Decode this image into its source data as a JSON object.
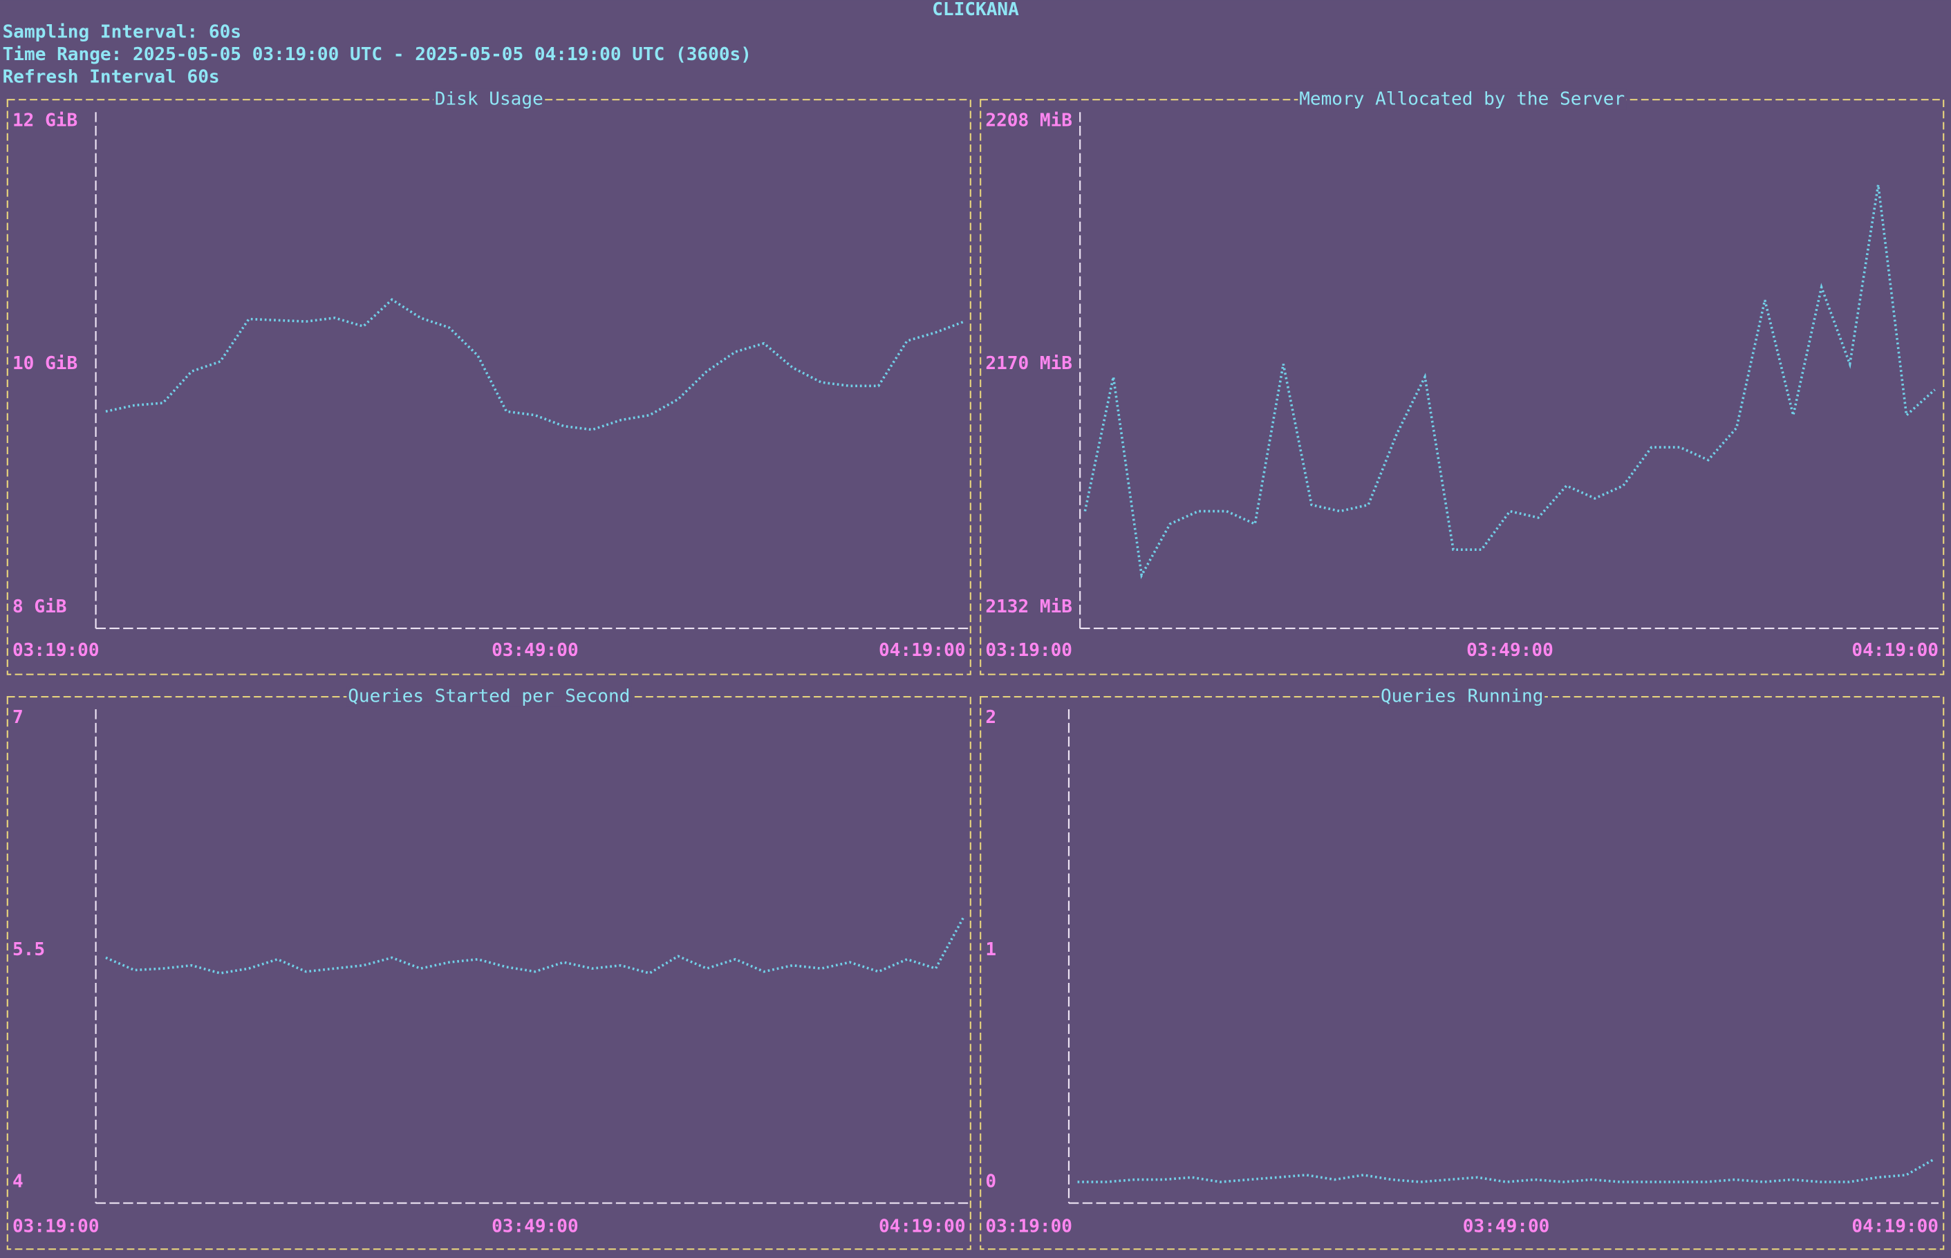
{
  "header": {
    "app": "CLICKANA",
    "lines": [
      "Sampling Interval: 60s",
      "Time Range: 2025-05-05 03:19:00 UTC - 2025-05-05 04:19:00 UTC (3600s)",
      "Refresh Interval 60s"
    ]
  },
  "chart_data": [
    {
      "type": "line",
      "title": "Disk Usage",
      "color": "#72d0e8",
      "x": [
        "03:19:00",
        "03:21:00",
        "03:23:00",
        "03:25:00",
        "03:27:00",
        "03:29:00",
        "03:31:00",
        "03:33:00",
        "03:35:00",
        "03:37:00",
        "03:39:00",
        "03:41:00",
        "03:43:00",
        "03:45:00",
        "03:47:00",
        "03:49:00",
        "03:51:00",
        "03:53:00",
        "03:55:00",
        "03:57:00",
        "03:59:00",
        "04:01:00",
        "04:03:00",
        "04:05:00",
        "04:07:00",
        "04:09:00",
        "04:11:00",
        "04:13:00",
        "04:15:00",
        "04:17:00",
        "04:19:00"
      ],
      "values": [
        9.61,
        9.66,
        9.68,
        9.94,
        10.02,
        10.37,
        10.36,
        10.35,
        10.38,
        10.31,
        10.53,
        10.38,
        10.3,
        10.07,
        9.61,
        9.58,
        9.49,
        9.46,
        9.54,
        9.58,
        9.71,
        9.94,
        10.1,
        10.17,
        9.97,
        9.85,
        9.82,
        9.82,
        10.19,
        10.26,
        10.35
      ],
      "ylim": [
        8,
        12
      ],
      "yticks": [
        {
          "value": 12,
          "label": "12 GiB"
        },
        {
          "value": 10,
          "label": "10 GiB"
        },
        {
          "value": 8,
          "label": "8 GiB"
        }
      ],
      "xlim": [
        "03:19:00",
        "04:19:00"
      ],
      "xticks": [
        "03:19:00",
        "03:49:00",
        "04:19:00"
      ]
    },
    {
      "type": "line",
      "title": "Memory Allocated by the Server",
      "color": "#72d0e8",
      "x": [
        "03:19:00",
        "03:21:00",
        "03:23:00",
        "03:25:00",
        "03:27:00",
        "03:29:00",
        "03:31:00",
        "03:33:00",
        "03:35:00",
        "03:37:00",
        "03:39:00",
        "03:41:00",
        "03:43:00",
        "03:45:00",
        "03:47:00",
        "03:49:00",
        "03:51:00",
        "03:53:00",
        "03:55:00",
        "03:57:00",
        "03:59:00",
        "04:01:00",
        "04:03:00",
        "04:05:00",
        "04:07:00",
        "04:09:00",
        "04:11:00",
        "04:13:00",
        "04:15:00",
        "04:17:00",
        "04:19:00"
      ],
      "values": [
        2147,
        2168,
        2137,
        2145,
        2147,
        2147,
        2145,
        2170,
        2148,
        2147,
        2148,
        2159,
        2168,
        2141,
        2141,
        2147,
        2146,
        2151,
        2149,
        2151,
        2157,
        2157,
        2155,
        2160,
        2180,
        2162,
        2182,
        2170,
        2198,
        2162,
        2166
      ],
      "ylim": [
        2132,
        2208
      ],
      "yticks": [
        {
          "value": 2208,
          "label": "2208 MiB"
        },
        {
          "value": 2170,
          "label": "2170 MiB"
        },
        {
          "value": 2132,
          "label": "2132 MiB"
        }
      ],
      "xlim": [
        "03:19:00",
        "04:19:00"
      ],
      "xticks": [
        "03:19:00",
        "03:49:00",
        "04:19:00"
      ]
    },
    {
      "type": "line",
      "title": "Queries Started per Second",
      "color": "#72d0e8",
      "x": [
        "03:19:00",
        "03:21:00",
        "03:23:00",
        "03:25:00",
        "03:27:00",
        "03:29:00",
        "03:31:00",
        "03:33:00",
        "03:35:00",
        "03:37:00",
        "03:39:00",
        "03:41:00",
        "03:43:00",
        "03:45:00",
        "03:47:00",
        "03:49:00",
        "03:51:00",
        "03:53:00",
        "03:55:00",
        "03:57:00",
        "03:59:00",
        "04:01:00",
        "04:03:00",
        "04:05:00",
        "04:07:00",
        "04:09:00",
        "04:11:00",
        "04:13:00",
        "04:15:00",
        "04:17:00",
        "04:19:00"
      ],
      "values": [
        5.45,
        5.37,
        5.38,
        5.4,
        5.35,
        5.38,
        5.44,
        5.36,
        5.38,
        5.4,
        5.45,
        5.38,
        5.42,
        5.44,
        5.39,
        5.36,
        5.42,
        5.38,
        5.4,
        5.35,
        5.46,
        5.38,
        5.44,
        5.36,
        5.4,
        5.38,
        5.42,
        5.36,
        5.44,
        5.38,
        5.72
      ],
      "ylim": [
        4,
        7
      ],
      "yticks": [
        7,
        5.5,
        4
      ],
      "xlim": [
        "03:19:00",
        "04:19:00"
      ],
      "xticks": [
        "03:19:00",
        "03:49:00",
        "04:19:00"
      ]
    },
    {
      "type": "line",
      "title": "Queries Running",
      "color": "#72d0e8",
      "x": [
        "03:19:00",
        "03:21:00",
        "03:23:00",
        "03:25:00",
        "03:27:00",
        "03:29:00",
        "03:31:00",
        "03:33:00",
        "03:35:00",
        "03:37:00",
        "03:39:00",
        "03:41:00",
        "03:43:00",
        "03:45:00",
        "03:47:00",
        "03:49:00",
        "03:51:00",
        "03:53:00",
        "03:55:00",
        "03:57:00",
        "03:59:00",
        "04:01:00",
        "04:03:00",
        "04:05:00",
        "04:07:00",
        "04:09:00",
        "04:11:00",
        "04:13:00",
        "04:15:00",
        "04:17:00",
        "04:19:00"
      ],
      "values": [
        0,
        0,
        0.01,
        0.01,
        0.02,
        0,
        0.01,
        0.02,
        0.03,
        0.01,
        0.03,
        0.01,
        0,
        0.01,
        0.02,
        0,
        0.01,
        0,
        0.01,
        0,
        0,
        0,
        0,
        0.01,
        0,
        0.01,
        0,
        0,
        0.02,
        0.03,
        0.1
      ],
      "ylim": [
        0,
        2
      ],
      "yticks": [
        2,
        1,
        0
      ],
      "xlim": [
        "03:19:00",
        "04:19:00"
      ],
      "xticks": [
        "03:19:00",
        "03:49:00",
        "04:19:00"
      ]
    }
  ]
}
